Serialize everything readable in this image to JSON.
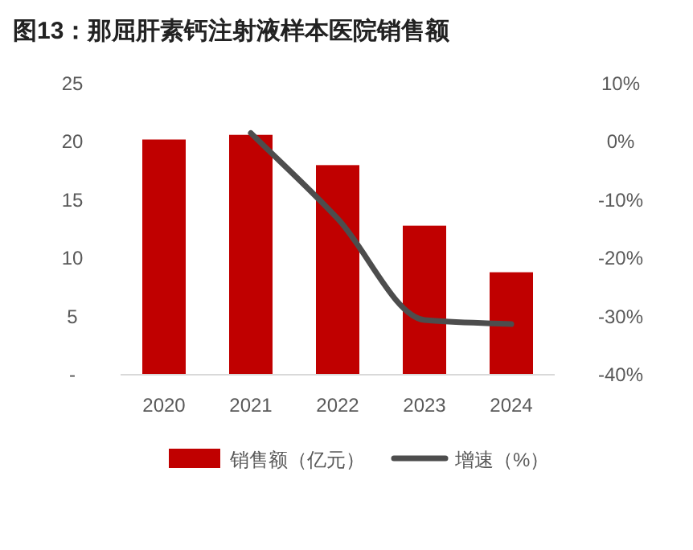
{
  "chart_data": {
    "type": "bar",
    "title": "图13：那屈肝素钙注射液样本医院销售额",
    "categories": [
      "2020",
      "2021",
      "2022",
      "2023",
      "2024"
    ],
    "series": [
      {
        "name": "销售额（亿元）",
        "color": "#c00000",
        "values": [
          20.2,
          20.6,
          18.0,
          12.8,
          8.8
        ]
      },
      {
        "name": "增速（%）",
        "type": "line",
        "axis": "y2",
        "color": "#4d4d4d",
        "values": [
          null,
          1.5,
          -13.2,
          -30.6,
          -31.3
        ]
      }
    ],
    "ylim": [
      0,
      25
    ],
    "yticks": [
      {
        "value": 0,
        "label": "-"
      },
      5,
      10,
      15,
      20,
      25
    ],
    "y2lim": [
      -40,
      10
    ],
    "y2ticks": [
      {
        "value": -40,
        "label": "-40%"
      },
      {
        "value": -30,
        "label": "-30%"
      },
      {
        "value": -20,
        "label": "-20%"
      },
      {
        "value": -10,
        "label": "-10%"
      },
      {
        "value": 0,
        "label": "0%"
      },
      {
        "value": 10,
        "label": "10%"
      }
    ],
    "legend": "bottom",
    "grid": false,
    "marker": "none"
  }
}
